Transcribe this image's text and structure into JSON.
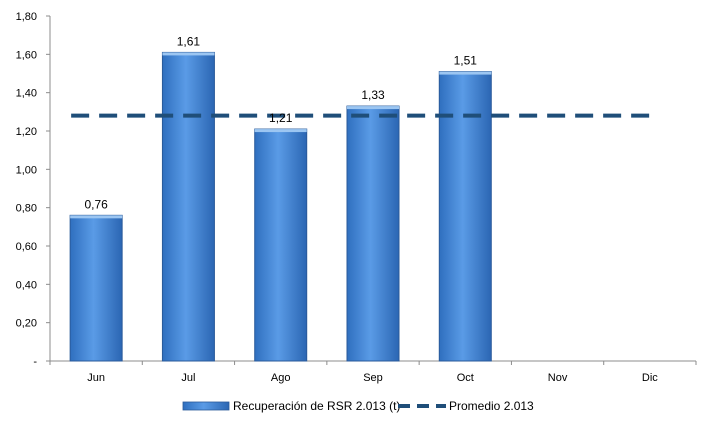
{
  "chart_data": {
    "type": "bar",
    "categories": [
      "Jun",
      "Jul",
      "Ago",
      "Sep",
      "Oct",
      "Nov",
      "Dic"
    ],
    "series": [
      {
        "name": "Recuperación de RSR 2.013 (t)",
        "type": "bar",
        "values": [
          0.76,
          1.61,
          1.21,
          1.33,
          1.51,
          null,
          null
        ],
        "data_labels": [
          "0,76",
          "1,61",
          "1,21",
          "1,33",
          "1,51",
          "",
          ""
        ],
        "color": "#3f86d6"
      },
      {
        "name": "Promedio 2.013",
        "type": "line",
        "style": "dashed",
        "value": 1.28,
        "color": "#1f4e79"
      }
    ],
    "ylim": [
      0,
      1.8
    ],
    "yticks": [
      0,
      0.2,
      0.4,
      0.6,
      0.8,
      1.0,
      1.2,
      1.4,
      1.6,
      1.8
    ],
    "ytick_labels": [
      "-",
      "0,20",
      "0,40",
      "0,60",
      "0,80",
      "1,00",
      "1,20",
      "1,40",
      "1,60",
      "1,80"
    ],
    "title": "",
    "xlabel": "",
    "ylabel": "",
    "grid": false,
    "legend_position": "bottom"
  }
}
